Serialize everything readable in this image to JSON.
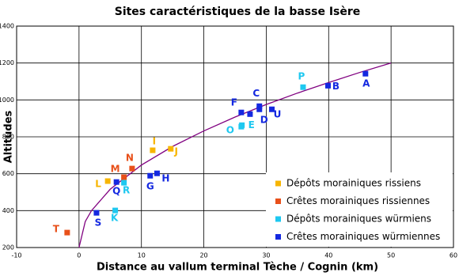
{
  "chart_data": {
    "type": "scatter",
    "title": "Sites caractéristiques de la basse Isère",
    "x_label": "Distance au vallum terminal Tèche / Cognin (km)",
    "y_label": "Altitudes",
    "xlim": [
      -10,
      60
    ],
    "xticks": [
      -10,
      0,
      10,
      20,
      30,
      40,
      50,
      60
    ],
    "ylim": [
      200,
      1400
    ],
    "yticks": [
      200,
      400,
      600,
      800,
      1000,
      1200,
      1400
    ],
    "grid": true,
    "legend": "lower right",
    "series": [
      {
        "name": "Dépôts morainiques rissiens",
        "color": "#f7b500",
        "x": [
          11.8,
          14.7,
          4.6
        ],
        "values": [
          727,
          735,
          560
        ],
        "labels": [
          "I",
          "J",
          "L"
        ]
      },
      {
        "name": "Crêtes morainiques rissiennes",
        "color": "#e8501a",
        "x": [
          -1.9,
          7.2,
          8.5
        ],
        "values": [
          281,
          581,
          628
        ],
        "labels": [
          "T",
          "M",
          "N"
        ]
      },
      {
        "name": "Dépôts morainiques würmiens",
        "color": "#1ec8f0",
        "x": [
          5.8,
          7.2,
          26.0,
          26.1,
          35.9
        ],
        "values": [
          401,
          551,
          855,
          863,
          1069
        ],
        "labels": [
          "K",
          "R",
          "O",
          "E",
          "P"
        ]
      },
      {
        "name": "Crêtes morainiques würmiennes",
        "color": "#1428e0",
        "x": [
          2.8,
          6.0,
          11.4,
          12.5,
          26.0,
          27.4,
          28.9,
          28.9,
          30.9,
          39.9,
          45.9
        ],
        "values": [
          388,
          555,
          589,
          602,
          932,
          923,
          966,
          949,
          949,
          1077,
          1142
        ],
        "labels": [
          "S",
          "Q",
          "G",
          "H",
          "F",
          null,
          "C",
          "D",
          "U",
          "B",
          "A"
        ]
      }
    ],
    "trend": {
      "color": "#800080",
      "x": [
        0,
        1,
        2,
        5,
        10,
        15,
        20,
        25,
        30,
        35,
        40,
        45,
        50
      ],
      "values": [
        200,
        341,
        400,
        516,
        647,
        748,
        832,
        907,
        975,
        1037,
        1094,
        1149,
        1200
      ]
    }
  }
}
